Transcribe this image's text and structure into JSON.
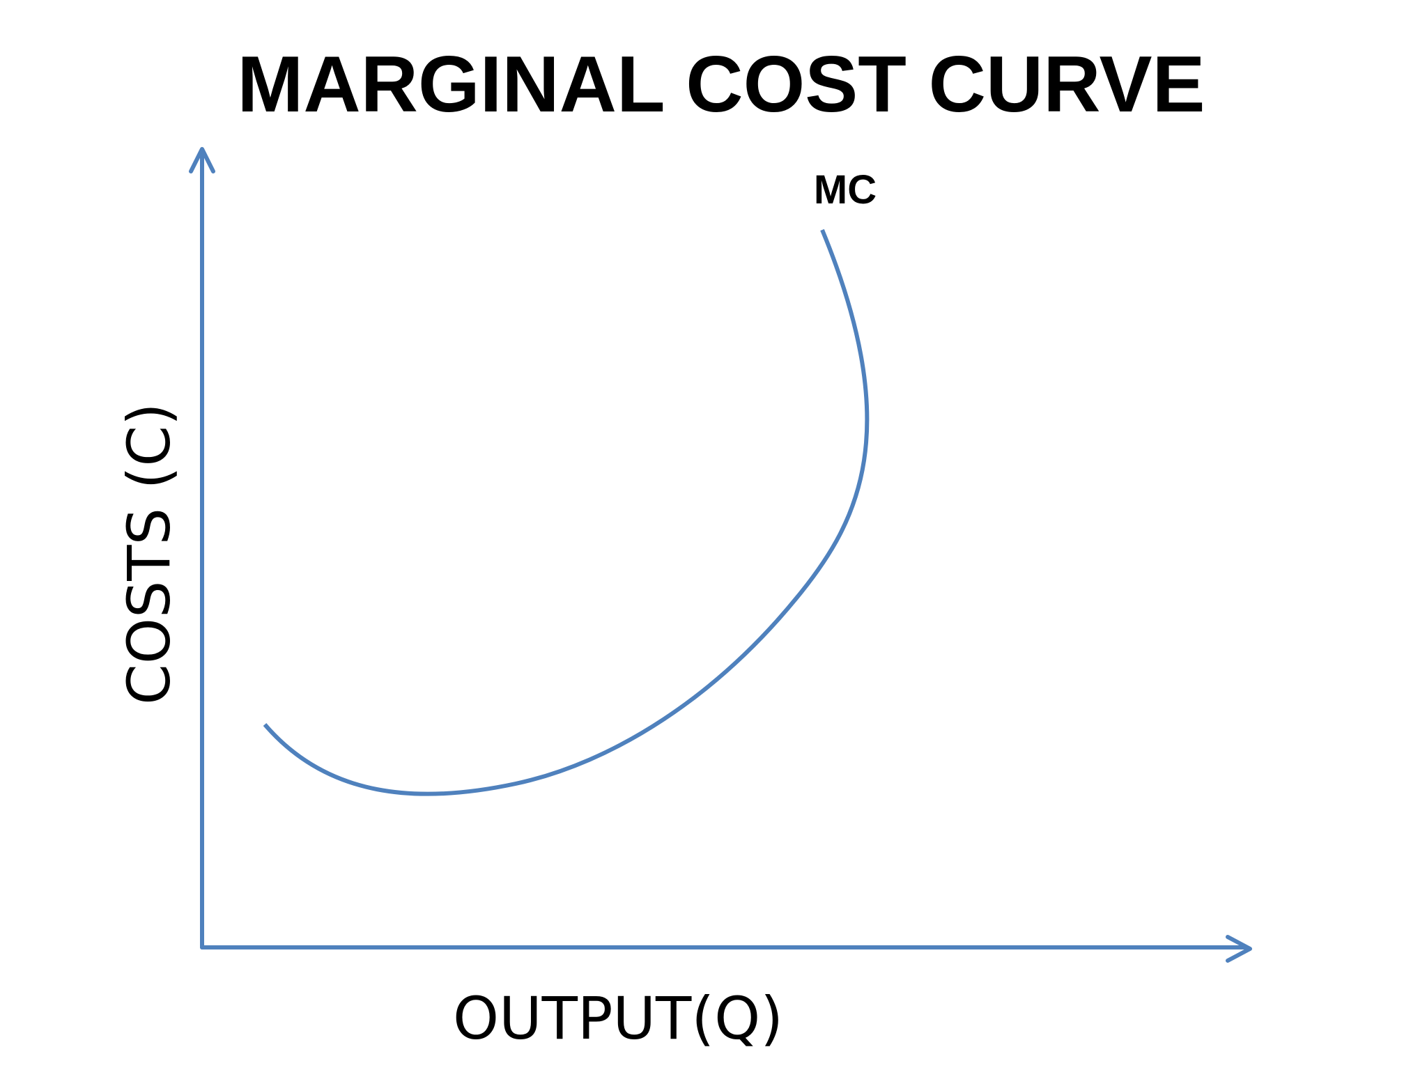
{
  "title": "MARGINAL COST CURVE",
  "curve": {
    "label": "MC"
  },
  "axes": {
    "x_label": "OUTPUT(Q)",
    "y_label": "COSTS (C)"
  },
  "colors": {
    "axis": "#4f81bd",
    "curve": "#4f81bd",
    "text": "#000000",
    "background": "#ffffff"
  }
}
